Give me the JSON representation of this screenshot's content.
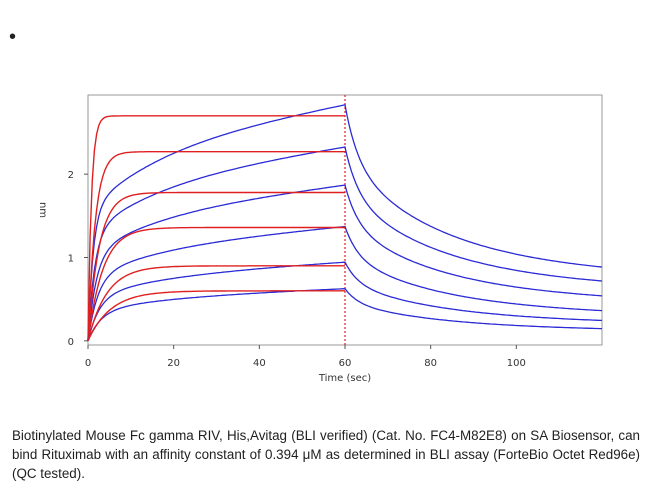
{
  "bullet": "•",
  "caption": "Biotinylated Mouse Fc gamma RIV, His,Avitag (BLI verified) (Cat. No. FC4-M82E8) on SA Biosensor, can bind Rituximab with an affinity constant of 0.394 μM as determined in BLI assay (ForteBio Octet Red96e) (QC tested).",
  "chart_data": {
    "type": "line",
    "title": "",
    "xlabel": "Time (sec)",
    "ylabel": "nm",
    "xlim": [
      0,
      120
    ],
    "ylim": [
      -0.05,
      2.95
    ],
    "xticks": [
      0,
      20,
      40,
      60,
      80,
      100
    ],
    "yticks": [
      0,
      1,
      2
    ],
    "grid": false,
    "association_end": 60,
    "colors": {
      "measured": "#2b2bd6",
      "fit": "#e02020",
      "axis": "#999999"
    },
    "curves": [
      {
        "plateau_measured": 2.85,
        "plateau_fit": 2.7,
        "end_dissociation": 0.9
      },
      {
        "plateau_measured": 2.34,
        "plateau_fit": 2.27,
        "end_dissociation": 0.73
      },
      {
        "plateau_measured": 1.88,
        "plateau_fit": 1.78,
        "end_dissociation": 0.55
      },
      {
        "plateau_measured": 1.38,
        "plateau_fit": 1.36,
        "end_dissociation": 0.37
      },
      {
        "plateau_measured": 0.95,
        "plateau_fit": 0.9,
        "end_dissociation": 0.25
      },
      {
        "plateau_measured": 0.63,
        "plateau_fit": 0.6,
        "end_dissociation": 0.15
      }
    ]
  }
}
